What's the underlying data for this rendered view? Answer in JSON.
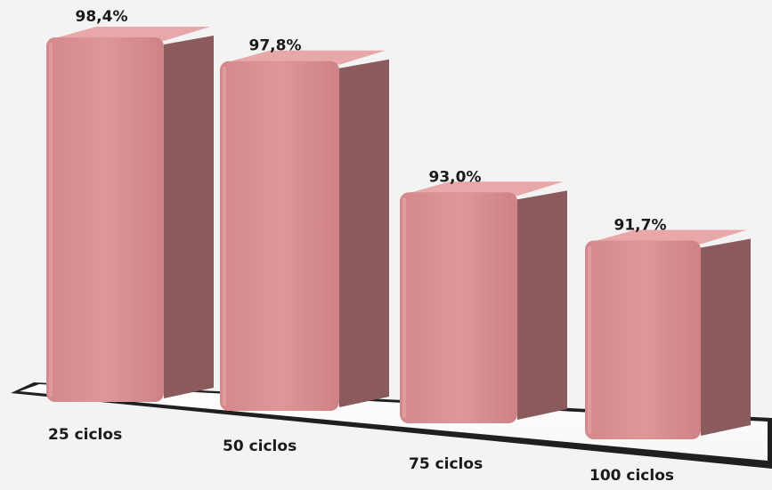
{
  "chart_data": {
    "type": "bar",
    "title": "",
    "xlabel": "",
    "ylabel": "",
    "categories": [
      "25 ciclos",
      "50 ciclos",
      "75 ciclos",
      "100 ciclos"
    ],
    "values": [
      98.4,
      97.8,
      93.0,
      91.7
    ],
    "value_labels": [
      "98,4%",
      "97,8%",
      "93,0%",
      "91,7%"
    ],
    "unit": "%",
    "grid": false,
    "legend": "none",
    "bar_color": "#d98f92",
    "bar_side_color": "#8a5a5c",
    "bar_top_color": "#e8a8aa"
  }
}
